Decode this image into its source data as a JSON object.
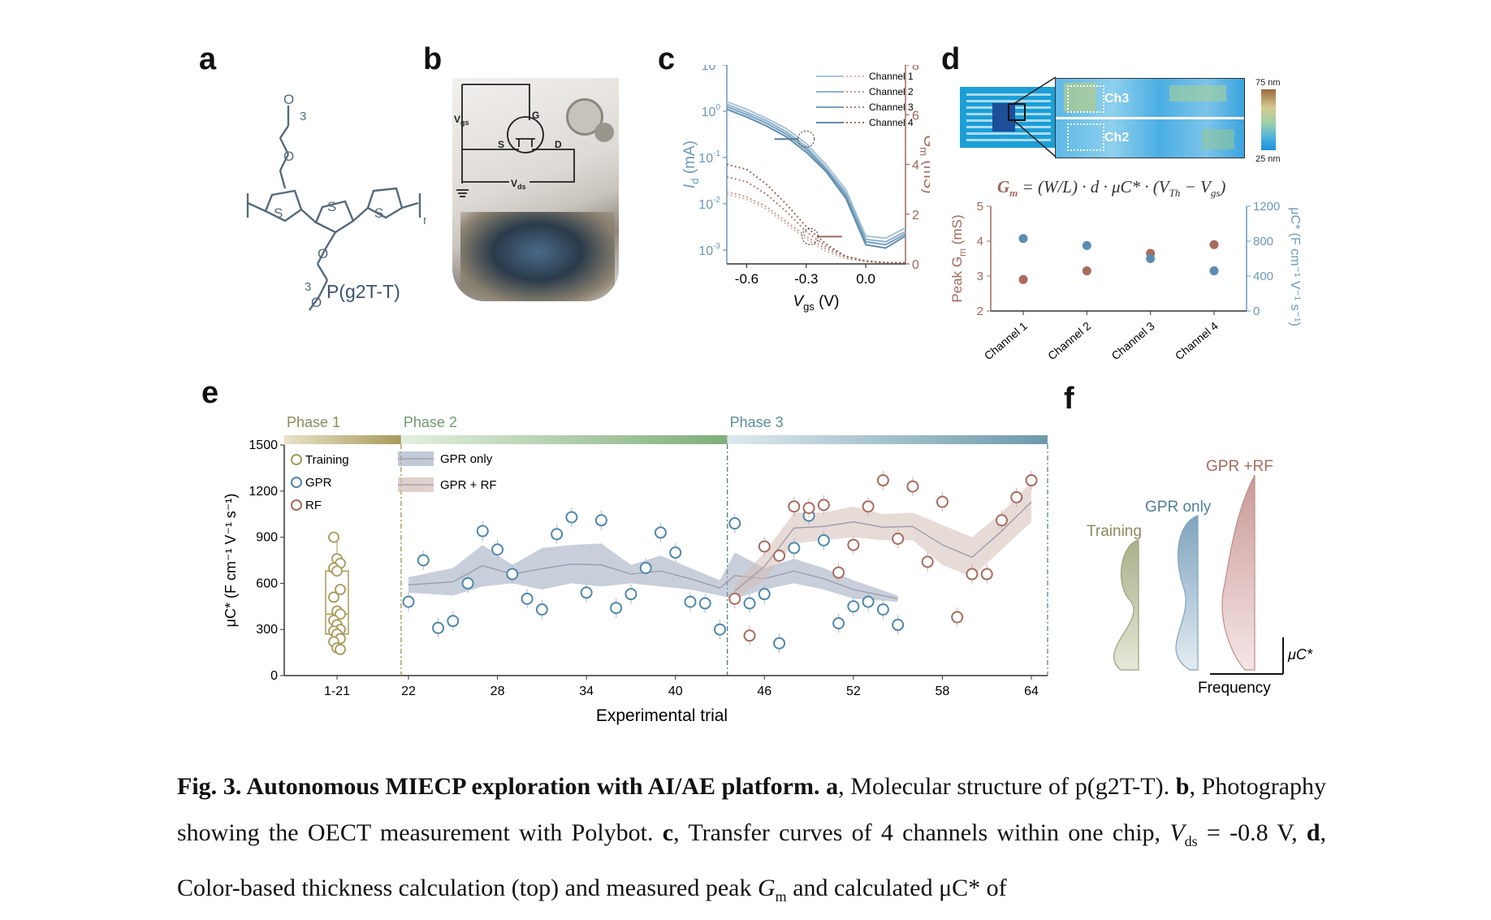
{
  "panels": {
    "a": "a",
    "b": "b",
    "c": "c",
    "d": "d",
    "e": "e",
    "f": "f"
  },
  "panel_a": {
    "polymer_label": "P(g2T-T)",
    "subscript_3": "3",
    "subscript_n": "n",
    "atom_O": "O",
    "atom_S": "S"
  },
  "panel_b": {
    "vgs": "V",
    "vgs_sub": "gs",
    "vds": "V",
    "vds_sub": "ds",
    "G": "G",
    "S": "S",
    "D": "D"
  },
  "panel_c": {
    "legend": [
      "Channel 1",
      "Channel 2",
      "Channel 3",
      "Channel 4"
    ],
    "xticks": [
      "-0.6",
      "-0.3",
      "0.0"
    ],
    "yticks_left": [
      "10",
      "10",
      "10",
      "10",
      "10"
    ],
    "yticks_left_exp": [
      "1",
      "0",
      "-1",
      "-2",
      "-3"
    ],
    "yticks_right": [
      "8",
      "6",
      "4",
      "2",
      "0"
    ],
    "xlabel_main": "V",
    "xlabel_sub": "gs",
    "xlabel_unit": " (V)",
    "ylabel_left_main": "I",
    "ylabel_left_sub": "d",
    "ylabel_left_unit": " (mA)",
    "ylabel_right_main": "G",
    "ylabel_right_sub": "m",
    "ylabel_right_unit": " (mS)",
    "colors": {
      "id": "#6b98b8",
      "gm": "#a0685c"
    }
  },
  "panel_d": {
    "scale_top": "75 nm",
    "scale_bottom": "25 nm",
    "ch3": "Ch3",
    "ch2": "Ch2",
    "equation": "G",
    "equation_sub": "m",
    "equation_rest": " = (W/L) · d · μC* · (V",
    "equation_th": "Th",
    "equation_minus": " − V",
    "equation_gs": "gs",
    "equation_close": ")",
    "categories": [
      "Channel 1",
      "Channel 2",
      "Channel 3",
      "Channel 4"
    ],
    "yticks_left": [
      "5",
      "4",
      "3",
      "2"
    ],
    "yticks_right": [
      "1200",
      "800",
      "400",
      "0"
    ],
    "ylabel_left": "Peak G",
    "ylabel_left_sub": "m",
    "ylabel_left_unit": " (mS)",
    "ylabel_right": "μC* (F cm⁻¹ V⁻¹ s⁻¹)"
  },
  "panel_e": {
    "phases": [
      "Phase 1",
      "Phase 2",
      "Phase 3"
    ],
    "legend_points": [
      "Training",
      "GPR",
      "RF"
    ],
    "legend_bands": [
      "GPR only",
      "GPR + RF"
    ],
    "xticks": [
      "1-21",
      "22",
      "28",
      "34",
      "40",
      "46",
      "52",
      "58",
      "64"
    ],
    "yticks": [
      "1500",
      "1200",
      "900",
      "600",
      "300",
      "0"
    ],
    "xlabel": "Experimental trial",
    "ylabel": "μC* (F cm⁻¹ V⁻¹ s⁻¹)",
    "colors": {
      "training": "#a99a5a",
      "gpr": "#4f87ad",
      "rf": "#a86b5e"
    }
  },
  "panel_f": {
    "labels": [
      "Training",
      "GPR only",
      "GPR +RF"
    ],
    "axis_y": "μC*",
    "axis_x": "Frequency"
  },
  "caption": {
    "fig": "Fig. 3. Autonomous MIECP exploration with AI/AE platform.",
    "a_label": "a",
    "a_text": ", Molecular structure of p(g2T-T).",
    "b_label": "b",
    "b_text": ", Photography showing the OECT measurement with Polybot.",
    "c_label": "c",
    "c_text": ", Transfer curves of 4 channels within one chip,",
    "vds_text": "V",
    "vds_sub": "ds",
    "vds_val": " = -0.8 V,",
    "d_label": "d",
    "d_text": ", Color-based thickness calculation (top) and measured peak",
    "gm_text": "G",
    "gm_sub": "m",
    "tail": " and calculated μC* of"
  },
  "chart_data": [
    {
      "type": "line",
      "panel": "c",
      "xlabel": "Vgs (V)",
      "ylabel": "Id (mA)",
      "ylabel_right": "Gm (mS)",
      "xlim": [
        -0.7,
        0.2
      ],
      "ylim": [
        0.0005,
        10
      ],
      "ylim_right": [
        0,
        8
      ],
      "yscale": "log",
      "x": [
        -0.7,
        -0.6,
        -0.5,
        -0.4,
        -0.3,
        -0.2,
        -0.1,
        0.0,
        0.1,
        0.2
      ],
      "series": [
        {
          "name": "Channel 1",
          "id": [
            1.6,
            1.1,
            0.7,
            0.42,
            0.2,
            0.07,
            0.02,
            0.002,
            0.0018,
            0.003
          ],
          "gm": [
            2.8,
            2.6,
            2.2,
            1.6,
            1.0,
            0.5,
            0.2,
            0.1,
            0.05,
            0.05
          ]
        },
        {
          "name": "Channel 2",
          "id": [
            1.4,
            0.95,
            0.62,
            0.36,
            0.17,
            0.06,
            0.017,
            0.0017,
            0.0015,
            0.0025
          ],
          "gm": [
            2.9,
            2.7,
            2.3,
            1.7,
            1.1,
            0.6,
            0.25,
            0.1,
            0.05,
            0.05
          ]
        },
        {
          "name": "Channel 3",
          "id": [
            1.25,
            0.85,
            0.55,
            0.32,
            0.15,
            0.055,
            0.015,
            0.0015,
            0.0013,
            0.0022
          ],
          "gm": [
            3.5,
            3.3,
            2.8,
            2.1,
            1.3,
            0.7,
            0.3,
            0.12,
            0.05,
            0.05
          ]
        },
        {
          "name": "Channel 4",
          "id": [
            1.1,
            0.75,
            0.48,
            0.28,
            0.13,
            0.05,
            0.013,
            0.0013,
            0.0011,
            0.002
          ],
          "gm": [
            4.0,
            3.8,
            3.2,
            2.4,
            1.5,
            0.8,
            0.3,
            0.12,
            0.05,
            0.05
          ]
        }
      ]
    },
    {
      "type": "scatter",
      "panel": "d",
      "categories": [
        "Channel 1",
        "Channel 2",
        "Channel 3",
        "Channel 4"
      ],
      "ylabel": "Peak Gm (mS)",
      "ylabel_right": "μC* (F cm⁻¹ V⁻¹ s⁻¹)",
      "ylim": [
        2,
        5
      ],
      "ylim_right": [
        0,
        1200
      ],
      "series": [
        {
          "name": "Peak Gm",
          "values": [
            2.9,
            3.15,
            3.65,
            3.9
          ]
        },
        {
          "name": "μC*",
          "values": [
            830,
            750,
            600,
            460
          ]
        }
      ]
    },
    {
      "type": "scatter",
      "panel": "e",
      "xlabel": "Experimental trial",
      "ylabel": "μC* (F cm⁻¹ V⁻¹ s⁻¹)",
      "ylim": [
        0,
        1500
      ],
      "xlim": [
        16,
        65
      ],
      "grid": false,
      "training": [
        900,
        760,
        730,
        700,
        680,
        560,
        510,
        420,
        400,
        360,
        330,
        300,
        290,
        270,
        240,
        220,
        180,
        170
      ],
      "gpr": [
        [
          22,
          480
        ],
        [
          23,
          750
        ],
        [
          24,
          310
        ],
        [
          25,
          355
        ],
        [
          26,
          600
        ],
        [
          27,
          940
        ],
        [
          28,
          820
        ],
        [
          29,
          660
        ],
        [
          30,
          500
        ],
        [
          31,
          430
        ],
        [
          32,
          920
        ],
        [
          33,
          1030
        ],
        [
          34,
          540
        ],
        [
          35,
          1010
        ],
        [
          36,
          440
        ],
        [
          37,
          530
        ],
        [
          38,
          700
        ],
        [
          39,
          930
        ],
        [
          40,
          800
        ],
        [
          41,
          480
        ],
        [
          42,
          470
        ],
        [
          43,
          300
        ],
        [
          44,
          990
        ],
        [
          45,
          470
        ],
        [
          46,
          530
        ],
        [
          47,
          210
        ],
        [
          48,
          830
        ],
        [
          49,
          1040
        ],
        [
          50,
          880
        ],
        [
          51,
          340
        ],
        [
          52,
          450
        ],
        [
          53,
          480
        ],
        [
          54,
          430
        ],
        [
          55,
          330
        ]
      ],
      "rf": [
        [
          44,
          500
        ],
        [
          45,
          260
        ],
        [
          46,
          840
        ],
        [
          47,
          780
        ],
        [
          48,
          1100
        ],
        [
          49,
          1090
        ],
        [
          50,
          1110
        ],
        [
          51,
          670
        ],
        [
          52,
          850
        ],
        [
          53,
          1100
        ],
        [
          54,
          1270
        ],
        [
          55,
          890
        ],
        [
          56,
          1230
        ],
        [
          57,
          740
        ],
        [
          58,
          1130
        ],
        [
          59,
          380
        ],
        [
          60,
          660
        ],
        [
          61,
          660
        ],
        [
          62,
          1010
        ],
        [
          63,
          1160
        ],
        [
          64,
          1270
        ]
      ],
      "phase_boundaries": [
        21.5,
        43.5
      ],
      "legend_position": "top-left"
    }
  ]
}
